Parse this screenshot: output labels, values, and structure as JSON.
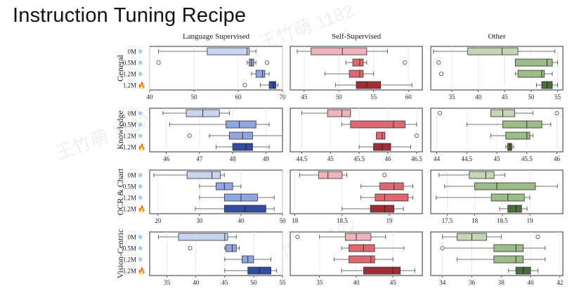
{
  "title": "Instruction Tuning Recipe",
  "watermark": "王竹萌 1182",
  "palette": {
    "blue": {
      "light": "#c8d4f0",
      "mid": "#8fa6e3",
      "dark": "#2f4ca0"
    },
    "red": {
      "light": "#efb4ba",
      "mid": "#de6870",
      "dark": "#a12e35"
    },
    "green": {
      "light": "#c3d6b5",
      "mid": "#9dbb86",
      "dark": "#4a6e3a"
    }
  },
  "rows": [
    "0M",
    "0.5M",
    "1.2M",
    "1.2M"
  ],
  "row_icons": [
    "snowflake-icon",
    "snowflake-icon",
    "snowflake-icon",
    "fire-icon"
  ],
  "columns": [
    "Language Supervised",
    "Self-Supervised",
    "Other"
  ],
  "chart_data": [
    {
      "type": "box",
      "category": "General",
      "column": "Language Supervised",
      "color": "blue",
      "xlim": [
        40,
        70
      ],
      "ticks": [
        40,
        50,
        60,
        70
      ],
      "boxes": [
        {
          "min": 42,
          "q1": 53,
          "median": 62,
          "q3": 62.5,
          "max": 64,
          "outliers": []
        },
        {
          "min": 62,
          "q1": 62.5,
          "median": 63,
          "q3": 63.5,
          "max": 64,
          "outliers": [
            42,
            66.5
          ]
        },
        {
          "min": 63,
          "q1": 64,
          "median": 65.5,
          "q3": 66,
          "max": 67,
          "outliers": []
        },
        {
          "min": 65,
          "q1": 67,
          "median": 68,
          "q3": 68.5,
          "max": 69,
          "outliers": [
            61.5
          ]
        }
      ]
    },
    {
      "type": "box",
      "category": "General",
      "column": "Self-Supervised",
      "color": "red",
      "xlim": [
        43,
        62
      ],
      "ticks": [
        45,
        50,
        55,
        60
      ],
      "boxes": [
        {
          "min": 44,
          "q1": 46,
          "median": 50.5,
          "q3": 54,
          "max": 57,
          "outliers": []
        },
        {
          "min": 51,
          "q1": 52,
          "median": 53,
          "q3": 53.5,
          "max": 54,
          "outliers": [
            59.5
          ]
        },
        {
          "min": 48,
          "q1": 51.5,
          "median": 53,
          "q3": 53.5,
          "max": 55,
          "outliers": []
        },
        {
          "min": 49.5,
          "q1": 52.5,
          "median": 54,
          "q3": 56,
          "max": 60.5,
          "outliers": []
        }
      ]
    },
    {
      "type": "box",
      "category": "General",
      "column": "Other",
      "color": "green",
      "xlim": [
        31,
        56
      ],
      "ticks": [
        35,
        40,
        45,
        50,
        55
      ],
      "boxes": [
        {
          "min": 31.5,
          "q1": 38,
          "median": 44.5,
          "q3": 47.5,
          "max": 54.5,
          "outliers": []
        },
        {
          "min": 47,
          "q1": 47,
          "median": 53,
          "q3": 54,
          "max": 55,
          "outliers": [
            32.5
          ]
        },
        {
          "min": 47,
          "q1": 47.5,
          "median": 52,
          "q3": 52.5,
          "max": 54,
          "outliers": [
            33
          ]
        },
        {
          "min": 51,
          "q1": 52,
          "median": 53,
          "q3": 54,
          "max": 55,
          "outliers": []
        }
      ]
    },
    {
      "type": "box",
      "category": "Knowledge",
      "column": "Language Supervised",
      "color": "blue",
      "xlim": [
        45.5,
        49.5
      ],
      "ticks": [
        46,
        47,
        48,
        49
      ],
      "boxes": [
        {
          "min": 45.9,
          "q1": 46.6,
          "median": 47.1,
          "q3": 47.6,
          "max": 47.9,
          "outliers": []
        },
        {
          "min": 46.1,
          "q1": 47.8,
          "median": 48.2,
          "q3": 48.7,
          "max": 49.1,
          "outliers": []
        },
        {
          "min": 47.3,
          "q1": 47.9,
          "median": 48.3,
          "q3": 48.6,
          "max": 49.5,
          "outliers": [
            46.7
          ]
        },
        {
          "min": 47.5,
          "q1": 48.0,
          "median": 48.4,
          "q3": 48.6,
          "max": 49.1,
          "outliers": []
        }
      ]
    },
    {
      "type": "box",
      "category": "Knowledge",
      "column": "Self-Supervised",
      "color": "red",
      "xlim": [
        44.3,
        46.6
      ],
      "ticks": [
        44.5,
        45.0,
        45.5,
        46.0,
        46.5
      ],
      "boxes": [
        {
          "min": 44.5,
          "q1": 44.95,
          "median": 45.2,
          "q3": 45.35,
          "max": 45.35,
          "outliers": []
        },
        {
          "min": 45.2,
          "q1": 45.35,
          "median": 46.1,
          "q3": 46.3,
          "max": 46.5,
          "outliers": []
        },
        {
          "min": 45.8,
          "q1": 45.8,
          "median": 45.9,
          "q3": 45.95,
          "max": 45.95,
          "outliers": [
            46.5
          ]
        },
        {
          "min": 45.5,
          "q1": 45.75,
          "median": 45.9,
          "q3": 46.05,
          "max": 46.4,
          "outliers": []
        }
      ]
    },
    {
      "type": "box",
      "category": "Knowledge",
      "column": "Other",
      "color": "green",
      "xlim": [
        43.9,
        46.1
      ],
      "ticks": [
        44.0,
        44.5,
        45.0,
        45.5,
        46.0
      ],
      "boxes": [
        {
          "min": 44.9,
          "q1": 44.9,
          "median": 45.1,
          "q3": 45.3,
          "max": 45.6,
          "outliers": [
            44.05,
            46.0
          ]
        },
        {
          "min": 44.5,
          "q1": 45.1,
          "median": 45.5,
          "q3": 45.75,
          "max": 45.9,
          "outliers": []
        },
        {
          "min": 44.9,
          "q1": 45.15,
          "median": 45.5,
          "q3": 45.55,
          "max": 45.6,
          "outliers": []
        },
        {
          "min": 45.15,
          "q1": 45.18,
          "median": 45.22,
          "q3": 45.25,
          "max": 45.28,
          "outliers": []
        }
      ]
    },
    {
      "type": "box",
      "category": "OCR & Chart",
      "column": "Language Supervised",
      "color": "blue",
      "xlim": [
        18,
        50
      ],
      "ticks": [
        20,
        30,
        40,
        50
      ],
      "boxes": [
        {
          "min": 19,
          "q1": 27,
          "median": 33,
          "q3": 35,
          "max": 36,
          "outliers": []
        },
        {
          "min": 30,
          "q1": 34,
          "median": 36,
          "q3": 38,
          "max": 40,
          "outliers": []
        },
        {
          "min": 30,
          "q1": 36,
          "median": 40,
          "q3": 44,
          "max": 48,
          "outliers": []
        },
        {
          "min": 29,
          "q1": 36,
          "median": 41,
          "q3": 46,
          "max": 48,
          "outliers": []
        }
      ]
    },
    {
      "type": "box",
      "category": "OCR & Chart",
      "column": "Self-Supervised",
      "color": "red",
      "xlim": [
        17.95,
        19.35
      ],
      "ticks": [
        18.0,
        18.5,
        19.0
      ],
      "boxes": [
        {
          "min": 18.05,
          "q1": 18.25,
          "median": 18.35,
          "q3": 18.5,
          "max": 18.55,
          "outliers": [
            18.95
          ]
        },
        {
          "min": 18.7,
          "q1": 18.9,
          "median": 19.05,
          "q3": 19.15,
          "max": 19.25,
          "outliers": []
        },
        {
          "min": 18.7,
          "q1": 18.85,
          "median": 18.95,
          "q3": 19.2,
          "max": 19.25,
          "outliers": []
        },
        {
          "min": 18.5,
          "q1": 18.8,
          "median": 18.95,
          "q3": 19.05,
          "max": 19.15,
          "outliers": []
        }
      ]
    },
    {
      "type": "box",
      "category": "OCR & Chart",
      "column": "Other",
      "color": "green",
      "xlim": [
        17.2,
        19.6
      ],
      "ticks": [
        17.5,
        18.0,
        18.5,
        19.0
      ],
      "boxes": [
        {
          "min": 17.35,
          "q1": 17.9,
          "median": 18.2,
          "q3": 18.35,
          "max": 18.55,
          "outliers": []
        },
        {
          "min": 17.45,
          "q1": 18.0,
          "median": 18.4,
          "q3": 19.1,
          "max": 19.5,
          "outliers": []
        },
        {
          "min": 17.3,
          "q1": 18.3,
          "median": 18.6,
          "q3": 18.9,
          "max": 19.0,
          "outliers": []
        },
        {
          "min": 18.45,
          "q1": 18.6,
          "median": 18.75,
          "q3": 18.85,
          "max": 18.95,
          "outliers": []
        }
      ]
    },
    {
      "type": "box",
      "category": "Vision-Centric",
      "column": "Language Supervised",
      "color": "blue",
      "xlim": [
        32,
        55
      ],
      "ticks": [
        35,
        40,
        45,
        50,
        55
      ],
      "boxes": [
        {
          "min": 33.5,
          "q1": 37,
          "median": 45,
          "q3": 45.5,
          "max": 47,
          "outliers": []
        },
        {
          "min": 45,
          "q1": 45.2,
          "median": 46.3,
          "q3": 47,
          "max": 47.5,
          "outliers": [
            39
          ]
        },
        {
          "min": 45,
          "q1": 48,
          "median": 49,
          "q3": 50,
          "max": 53,
          "outliers": []
        },
        {
          "min": 45,
          "q1": 49,
          "median": 51,
          "q3": 53,
          "max": 54,
          "outliers": []
        }
      ]
    },
    {
      "type": "box",
      "category": "Vision-Centric",
      "column": "Self-Supervised",
      "color": "red",
      "xlim": [
        31,
        49
      ],
      "ticks": [
        35,
        40,
        45
      ],
      "boxes": [
        {
          "min": 35,
          "q1": 38.5,
          "median": 40,
          "q3": 42,
          "max": 44,
          "outliers": [
            32
          ]
        },
        {
          "min": 38,
          "q1": 39,
          "median": 41,
          "q3": 42.5,
          "max": 46.5,
          "outliers": []
        },
        {
          "min": 37,
          "q1": 39,
          "median": 42,
          "q3": 42.5,
          "max": 45,
          "outliers": []
        },
        {
          "min": 38,
          "q1": 41,
          "median": 45,
          "q3": 46,
          "max": 48,
          "outliers": []
        }
      ]
    },
    {
      "type": "box",
      "category": "Vision-Centric",
      "column": "Other",
      "color": "green",
      "xlim": [
        33.2,
        42.2
      ],
      "ticks": [
        34,
        36,
        38,
        40,
        42
      ],
      "boxes": [
        {
          "min": 34,
          "q1": 35,
          "median": 36,
          "q3": 37,
          "max": 38,
          "outliers": [
            40.5
          ]
        },
        {
          "min": 34,
          "q1": 37.5,
          "median": 39,
          "q3": 39.5,
          "max": 41,
          "outliers": [
            34
          ]
        },
        {
          "min": 35,
          "q1": 37.5,
          "median": 39,
          "q3": 39.5,
          "max": 41,
          "outliers": []
        },
        {
          "min": 38.5,
          "q1": 39,
          "median": 39.5,
          "q3": 40,
          "max": 40.5,
          "outliers": []
        }
      ]
    }
  ]
}
